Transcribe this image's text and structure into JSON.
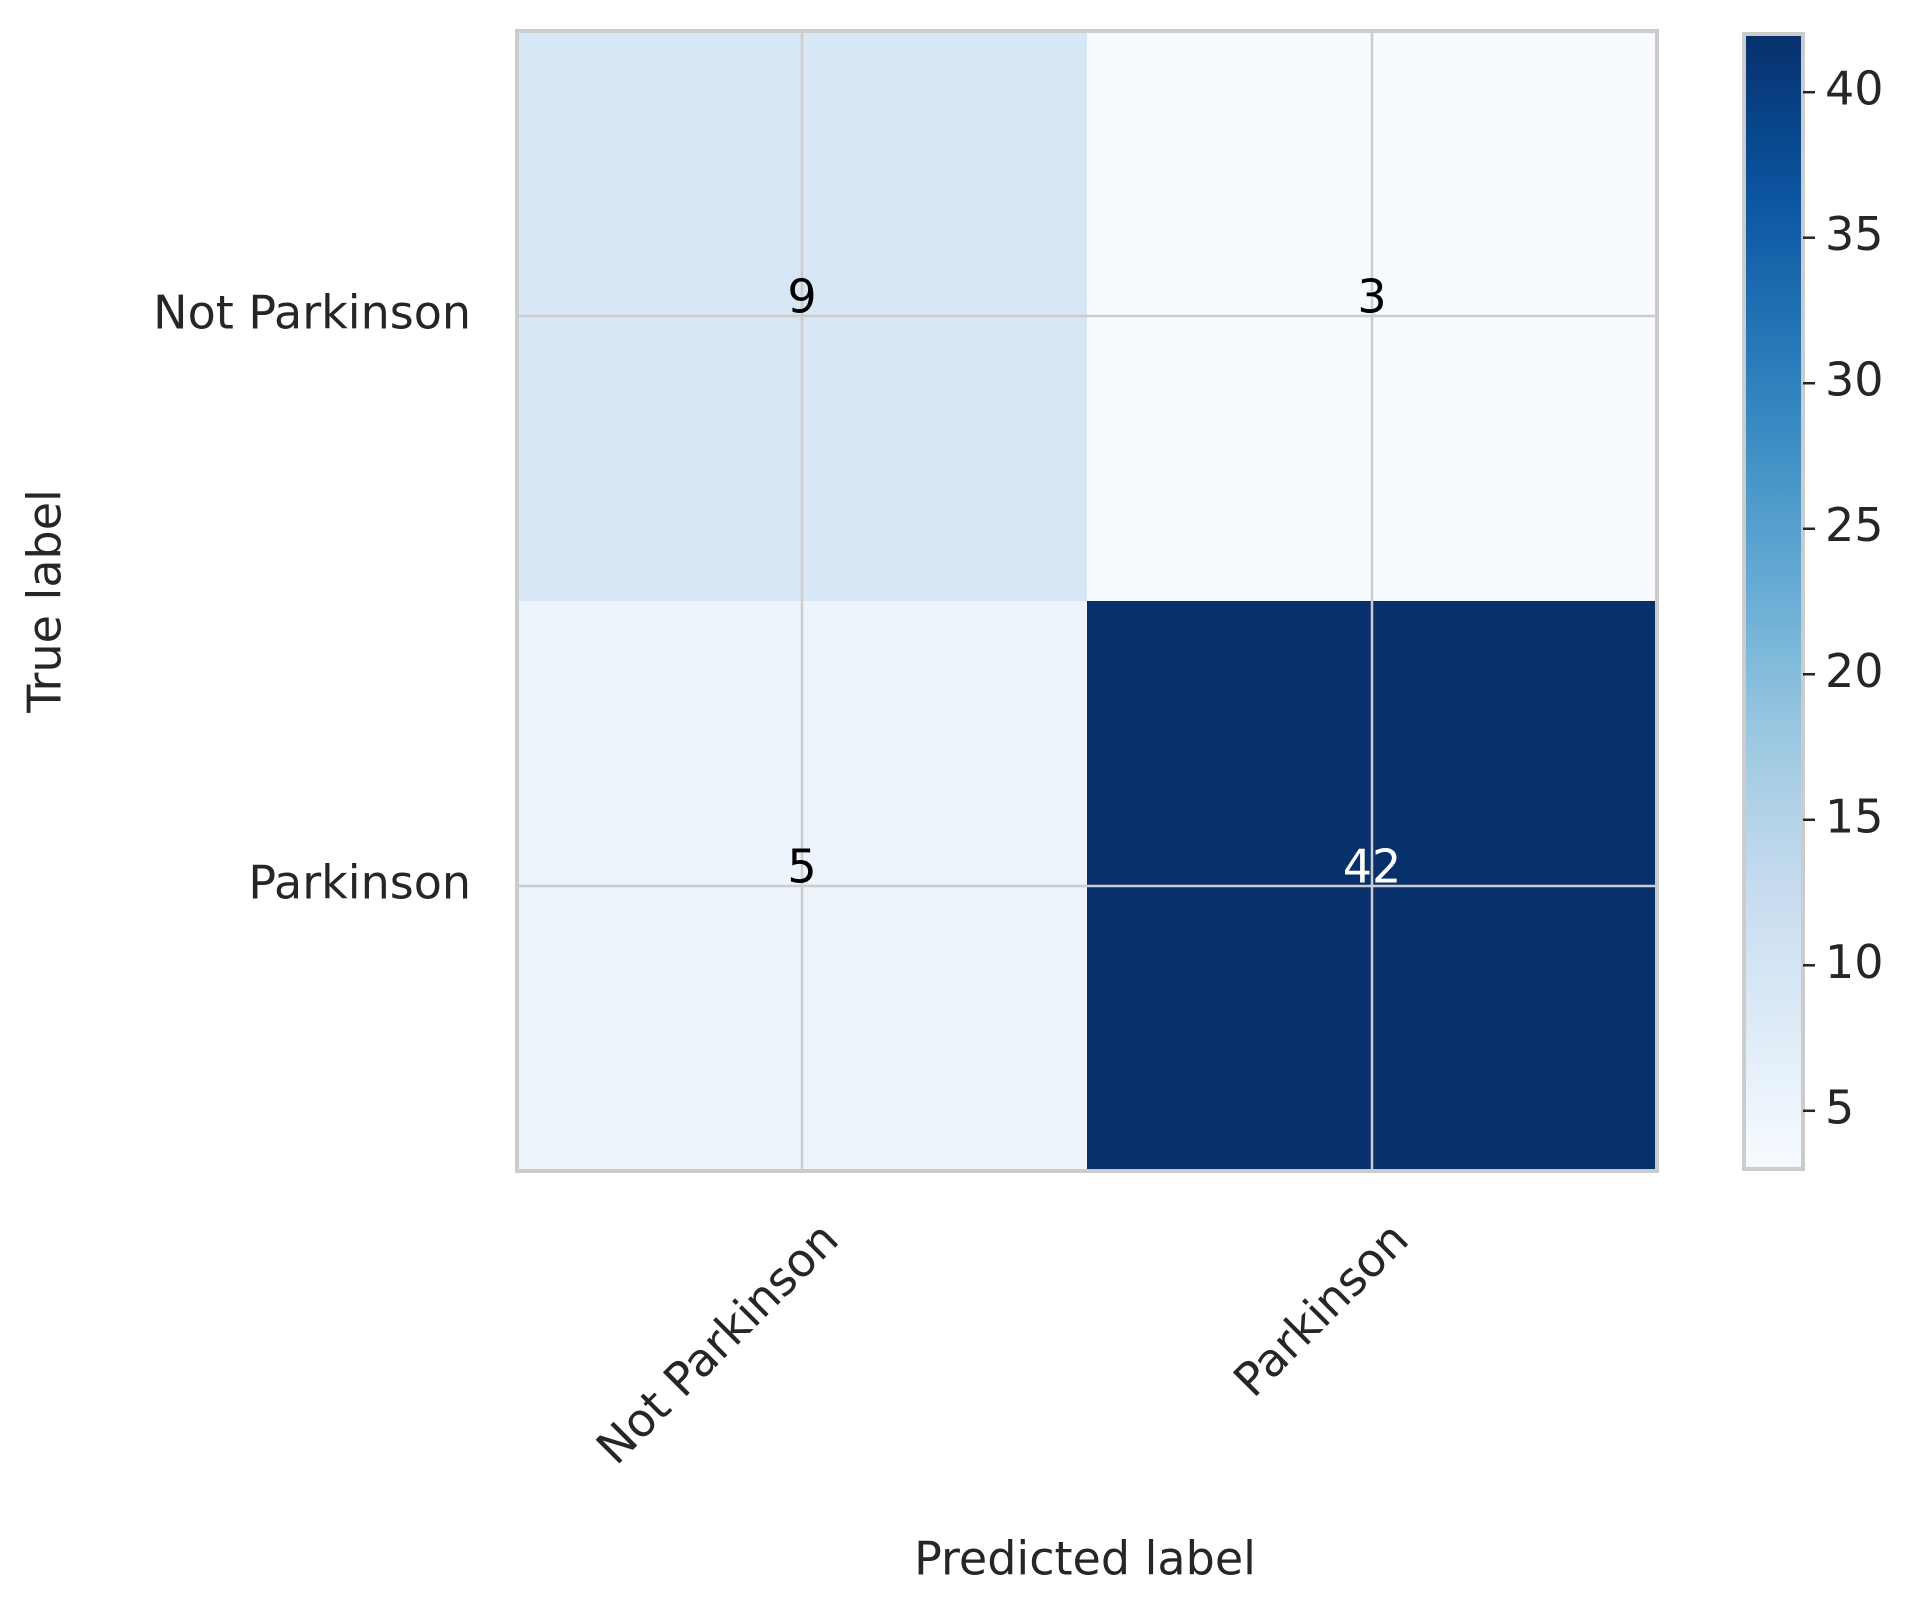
{
  "chart_data": {
    "type": "heatmap",
    "xlabel": "Predicted label",
    "ylabel": "True label",
    "columns": [
      "Not Parkinson",
      "Parkinson"
    ],
    "rows": [
      "Not Parkinson",
      "Parkinson"
    ],
    "values": [
      [
        9,
        3
      ],
      [
        5,
        42
      ]
    ],
    "colormap": "Blues",
    "clim": [
      3,
      42
    ],
    "cticks": [
      5,
      10,
      15,
      20,
      25,
      30,
      35,
      40
    ],
    "grid": true
  }
}
